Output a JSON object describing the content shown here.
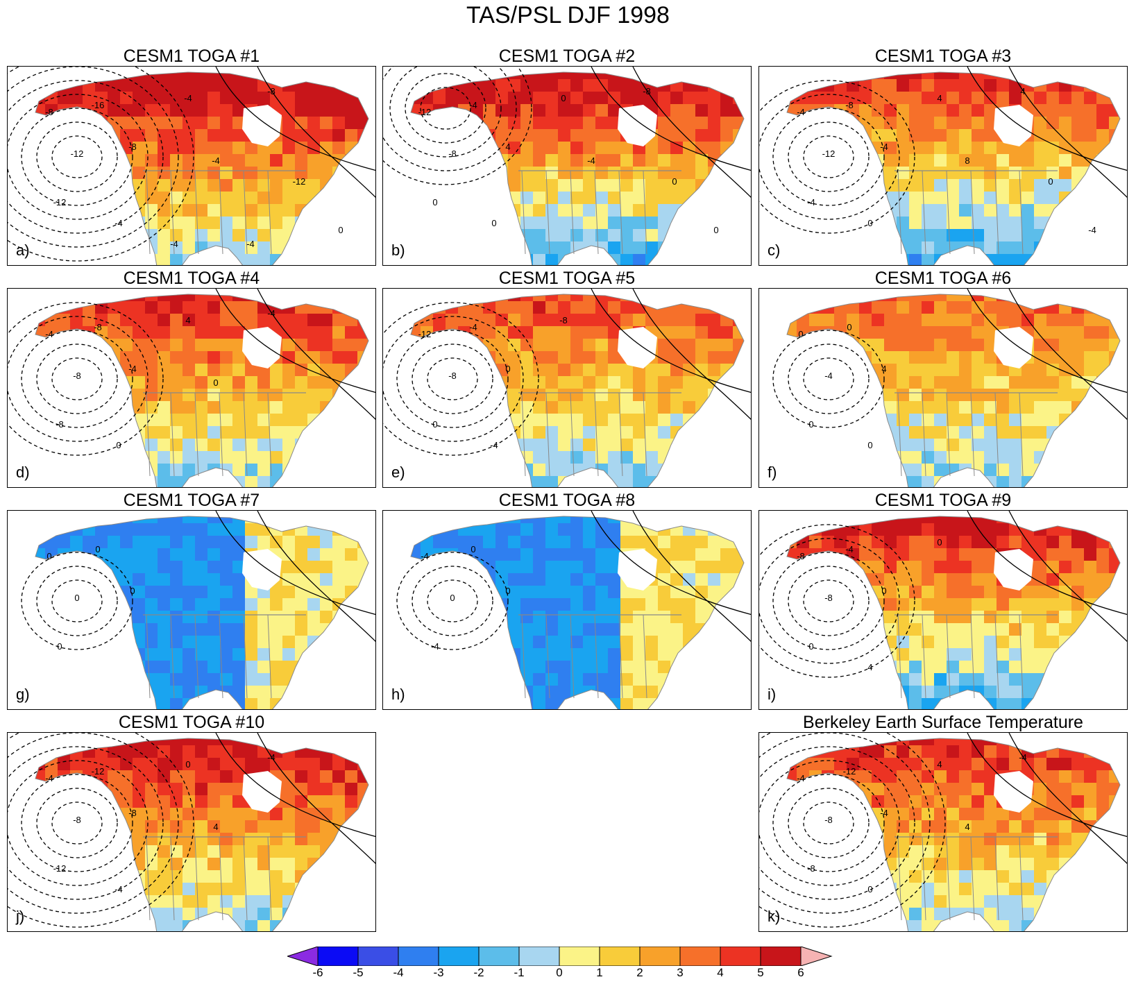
{
  "title": "TAS/PSL DJF 1998",
  "panels": [
    {
      "title": "CESM1 TOGA #1",
      "letter": "a)",
      "labels": [
        "-8",
        "-12",
        "-16",
        "-12",
        "-8",
        "-4",
        "-4",
        "-4",
        "-8",
        "-12",
        "0",
        "-4",
        "-4"
      ],
      "scheme": {
        "warmBias": 4.5,
        "lowCenter": "west-deep",
        "southCold": 1
      }
    },
    {
      "title": "CESM1 TOGA #2",
      "letter": "b)",
      "labels": [
        "-12",
        "-8",
        "-4",
        "0",
        "4",
        "0",
        "0",
        "-4",
        "-8",
        "0",
        "0"
      ],
      "scheme": {
        "warmBias": 4.5,
        "lowCenter": "north",
        "southCold": 2
      }
    },
    {
      "title": "CESM1 TOGA #3",
      "letter": "c)",
      "labels": [
        "-4",
        "-12",
        "-8",
        "-4",
        "-4",
        "0",
        "4",
        "8",
        "4",
        "0",
        "-4"
      ],
      "scheme": {
        "warmBias": 3.5,
        "lowCenter": "west",
        "southCold": 2
      }
    },
    {
      "title": "CESM1 TOGA #4",
      "letter": "d)",
      "labels": [
        "-4",
        "-8",
        "-8",
        "-8",
        "-4",
        "0",
        "4",
        "0",
        "-4"
      ],
      "scheme": {
        "warmBias": 3.5,
        "lowCenter": "west",
        "southCold": 1
      }
    },
    {
      "title": "CESM1 TOGA #5",
      "letter": "e)",
      "labels": [
        "-12",
        "-8",
        "-4",
        "0",
        "0",
        "-4",
        "-8"
      ],
      "scheme": {
        "warmBias": 3,
        "lowCenter": "northwest",
        "southCold": 1
      }
    },
    {
      "title": "CESM1 TOGA #6",
      "letter": "f)",
      "labels": [
        "0",
        "-4",
        "0",
        "0",
        "4",
        "0"
      ],
      "scheme": {
        "warmBias": 2.5,
        "lowCenter": "weak",
        "southCold": 1
      }
    },
    {
      "title": "CESM1 TOGA #7",
      "letter": "g)",
      "labels": [
        "0",
        "0",
        "0",
        "0",
        "0"
      ],
      "scheme": {
        "warmBias": 0.5,
        "lowCenter": "weak",
        "southCold": 3
      }
    },
    {
      "title": "CESM1 TOGA #8",
      "letter": "h)",
      "labels": [
        "-4",
        "0",
        "0",
        "-4",
        "0"
      ],
      "scheme": {
        "warmBias": 0.5,
        "lowCenter": "weak",
        "southCold": 3
      }
    },
    {
      "title": "CESM1 TOGA #9",
      "letter": "i)",
      "labels": [
        "-8",
        "-8",
        "-4",
        "0",
        "0",
        "4",
        "0"
      ],
      "scheme": {
        "warmBias": 4,
        "lowCenter": "west",
        "southCold": 2
      }
    },
    {
      "title": "CESM1 TOGA #10",
      "letter": "j)",
      "labels": [
        "-4",
        "-8",
        "-12",
        "-12",
        "-8",
        "-4",
        "0",
        "4",
        "-4"
      ],
      "scheme": {
        "warmBias": 4,
        "lowCenter": "west-deep",
        "southCold": 1
      }
    },
    {
      "title": "Berkeley Earth Surface Temperature",
      "letter": "k)",
      "labels": [
        "-4",
        "-8",
        "-12",
        "-8",
        "-4",
        "0",
        "4",
        "4",
        "-4"
      ],
      "scheme": {
        "warmBias": 3.5,
        "lowCenter": "west-deep",
        "southCold": 1
      }
    }
  ],
  "colorbar": {
    "labels": [
      "-6",
      "-5",
      "-4",
      "-3",
      "-2",
      "-1",
      "0",
      "1",
      "2",
      "3",
      "4",
      "5",
      "6"
    ],
    "colors": [
      "#0b0bf5",
      "#3a4ee6",
      "#2f7ff0",
      "#1aa4f0",
      "#5cbdea",
      "#a8d6f0",
      "#fbf387",
      "#f8cc3a",
      "#f8a12a",
      "#f6702a",
      "#ec3323",
      "#c8151a"
    ],
    "low_end": "#8b2be2",
    "high_end": "#f6b3b3"
  }
}
